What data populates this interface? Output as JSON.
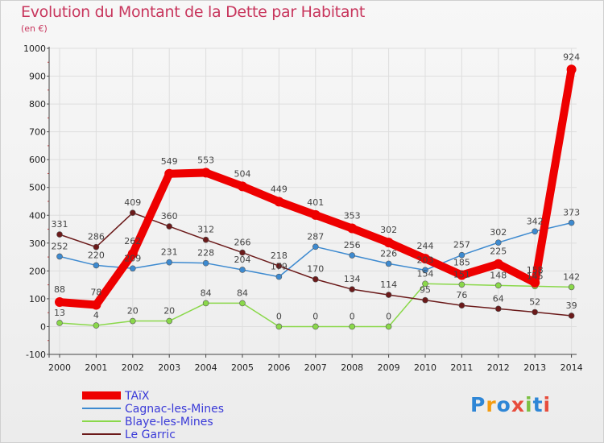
{
  "title": "Evolution du Montant de la Dette par Habitant",
  "subtitle": "(en €)",
  "logo": {
    "text": "Proxiti",
    "colors": [
      "#2e86d6",
      "#f39c12",
      "#2e86d6",
      "#e74c3c",
      "#7cc043",
      "#2e86d6",
      "#e74c3c"
    ]
  },
  "chart_data": {
    "type": "line",
    "x": [
      "2000",
      "2001",
      "2002",
      "2003",
      "2004",
      "2005",
      "2006",
      "2007",
      "2008",
      "2009",
      "2010",
      "2011",
      "2012",
      "2013",
      "2014"
    ],
    "ylim": [
      -100,
      1000
    ],
    "yticks": [
      "-100",
      "0",
      "100",
      "200",
      "300",
      "400",
      "500",
      "600",
      "700",
      "800",
      "900",
      "1000"
    ],
    "grid": true,
    "legend_position": "bottom-left",
    "series": [
      {
        "name": "TAïX",
        "color": "#ee0000",
        "values": [
          88,
          78,
          262,
          549,
          553,
          504,
          449,
          401,
          353,
          302,
          244,
          185,
          225,
          158,
          924
        ],
        "labels": [
          "88",
          "78",
          "262",
          "549",
          "553",
          "504",
          "449",
          "401",
          "353",
          "302",
          "244",
          "185",
          "225",
          "158",
          "924"
        ]
      },
      {
        "name": "Cagnac-les-Mines",
        "color": "#3d8ad0",
        "values": [
          252,
          220,
          209,
          231,
          228,
          204,
          179,
          287,
          256,
          226,
          203,
          257,
          302,
          342,
          373
        ],
        "labels": [
          "252",
          "220",
          "209",
          "231",
          "228",
          "204",
          "179",
          "287",
          "256",
          "226",
          "203",
          "257",
          "302",
          "342",
          "373"
        ]
      },
      {
        "name": "Blaye-les-Mines",
        "color": "#8ad84a",
        "values": [
          13,
          4,
          20,
          20,
          84,
          84,
          0,
          0,
          0,
          0,
          154,
          151,
          148,
          145,
          142
        ],
        "labels": [
          "13",
          "4",
          "20",
          "20",
          "84",
          "84",
          "0",
          "0",
          "0",
          "0",
          "154",
          "151",
          "148",
          "145",
          "142"
        ]
      },
      {
        "name": "Le Garric",
        "color": "#6b1a1a",
        "values": [
          331,
          286,
          409,
          360,
          312,
          266,
          218,
          170,
          134,
          114,
          95,
          76,
          64,
          52,
          39
        ],
        "labels": [
          "331",
          "286",
          "409",
          "360",
          "312",
          "266",
          "218",
          "170",
          "134",
          "114",
          "95",
          "76",
          "64",
          "52",
          "39"
        ]
      }
    ]
  }
}
